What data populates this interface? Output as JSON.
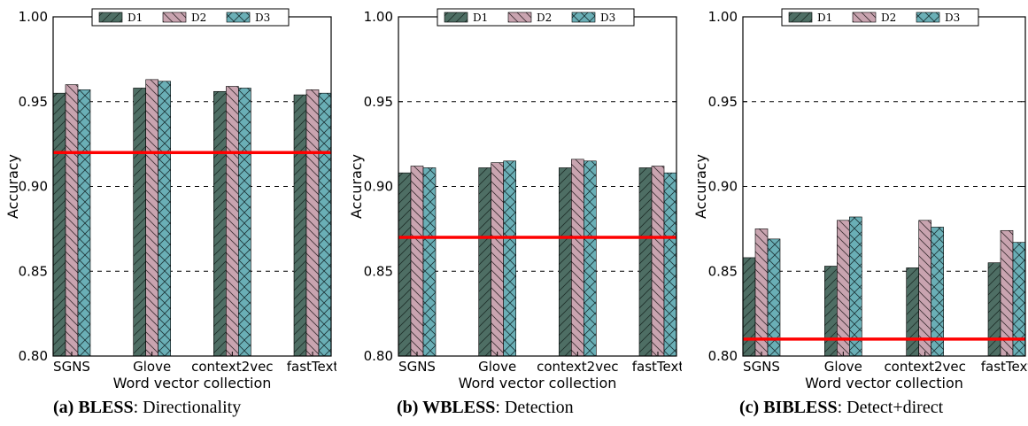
{
  "chart_data": [
    {
      "type": "bar",
      "panel_label": "(a)",
      "caption_bold": "BLESS",
      "caption_rest": ": Directionality",
      "categories": [
        "SGNS",
        "Glove",
        "context2vec",
        "fastText"
      ],
      "series": [
        {
          "name": "D1",
          "values": [
            0.955,
            0.958,
            0.956,
            0.954
          ]
        },
        {
          "name": "D2",
          "values": [
            0.96,
            0.963,
            0.959,
            0.957
          ]
        },
        {
          "name": "D3",
          "values": [
            0.957,
            0.962,
            0.958,
            0.955
          ]
        }
      ],
      "baseline": 0.92,
      "xlabel": "Word vector collection",
      "ylabel": "Accuracy",
      "ylim": [
        0.8,
        1.0
      ],
      "yticks": [
        "0.80",
        "0.85",
        "0.90",
        "0.95",
        "1.00"
      ],
      "grid": "horizontal dashed",
      "legend": "top"
    },
    {
      "type": "bar",
      "panel_label": "(b)",
      "caption_bold": "WBLESS",
      "caption_rest": ": Detection",
      "categories": [
        "SGNS",
        "Glove",
        "context2vec",
        "fastText"
      ],
      "series": [
        {
          "name": "D1",
          "values": [
            0.908,
            0.911,
            0.911,
            0.911
          ]
        },
        {
          "name": "D2",
          "values": [
            0.912,
            0.914,
            0.916,
            0.912
          ]
        },
        {
          "name": "D3",
          "values": [
            0.911,
            0.915,
            0.915,
            0.908
          ]
        }
      ],
      "baseline": 0.87,
      "xlabel": "Word vector collection",
      "ylabel": "Accuracy",
      "ylim": [
        0.8,
        1.0
      ],
      "yticks": [
        "0.80",
        "0.85",
        "0.90",
        "0.95",
        "1.00"
      ],
      "grid": "horizontal dashed",
      "legend": "top"
    },
    {
      "type": "bar",
      "panel_label": "(c)",
      "caption_bold": "BIBLESS",
      "caption_rest": ": Detect+direct",
      "categories": [
        "SGNS",
        "Glove",
        "context2vec",
        "fastText"
      ],
      "series": [
        {
          "name": "D1",
          "values": [
            0.858,
            0.853,
            0.852,
            0.855
          ]
        },
        {
          "name": "D2",
          "values": [
            0.875,
            0.88,
            0.88,
            0.874
          ]
        },
        {
          "name": "D3",
          "values": [
            0.869,
            0.882,
            0.876,
            0.867
          ]
        }
      ],
      "baseline": 0.81,
      "xlabel": "Word vector collection",
      "ylabel": "Accuracy",
      "ylim": [
        0.8,
        1.0
      ],
      "yticks": [
        "0.80",
        "0.85",
        "0.90",
        "0.95",
        "1.00"
      ],
      "grid": "horizontal dashed",
      "legend": "top"
    }
  ],
  "colors": {
    "D1": "#4e6e64",
    "D2": "#c9a4b0",
    "D3": "#6aafb6",
    "baseline": "#ff0000",
    "grid": "#000000"
  }
}
